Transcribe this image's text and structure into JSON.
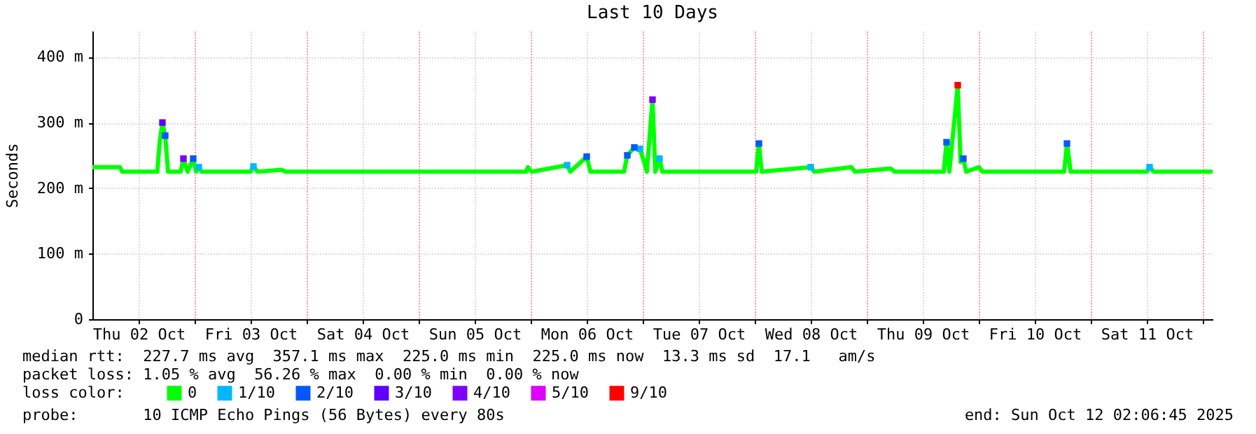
{
  "chart_data": {
    "type": "line",
    "title": "Last 10 Days",
    "ylabel": "Seconds",
    "legend_title": "loss color:",
    "legend": "bottom",
    "grid": true,
    "xlim": [
      "2025-10-02T02:06",
      "2025-10-12T02:06"
    ],
    "xticks": [
      {
        "value": "2025-10-02T12:00",
        "label": "Thu 02 Oct"
      },
      {
        "value": "2025-10-03T00:00",
        "label": null
      },
      {
        "value": "2025-10-03T12:00",
        "label": "Fri 03 Oct"
      },
      {
        "value": "2025-10-04T00:00",
        "label": null
      },
      {
        "value": "2025-10-04T12:00",
        "label": "Sat 04 Oct"
      },
      {
        "value": "2025-10-05T00:00",
        "label": null
      },
      {
        "value": "2025-10-05T12:00",
        "label": "Sun 05 Oct"
      },
      {
        "value": "2025-10-06T00:00",
        "label": null
      },
      {
        "value": "2025-10-06T12:00",
        "label": "Mon 06 Oct"
      },
      {
        "value": "2025-10-07T00:00",
        "label": null
      },
      {
        "value": "2025-10-07T12:00",
        "label": "Tue 07 Oct"
      },
      {
        "value": "2025-10-08T00:00",
        "label": null
      },
      {
        "value": "2025-10-08T12:00",
        "label": "Wed 08 Oct"
      },
      {
        "value": "2025-10-09T00:00",
        "label": null
      },
      {
        "value": "2025-10-09T12:00",
        "label": "Thu 09 Oct"
      },
      {
        "value": "2025-10-10T00:00",
        "label": null
      },
      {
        "value": "2025-10-10T12:00",
        "label": "Fri 10 Oct"
      },
      {
        "value": "2025-10-11T00:00",
        "label": null
      },
      {
        "value": "2025-10-11T12:00",
        "label": "Sat 11 Oct"
      },
      {
        "value": "2025-10-12T00:00",
        "label": null
      }
    ],
    "ylim": [
      0,
      440
    ],
    "yticks": [
      0,
      {
        "value": 100,
        "label": "100 m"
      },
      {
        "value": 200,
        "label": "200 m"
      },
      {
        "value": 300,
        "label": "300 m"
      },
      {
        "value": 400,
        "label": "400 m"
      }
    ],
    "series": [
      {
        "name": "0",
        "color": "#00ff00",
        "x": [
          "2025-10-02T02:06",
          "2025-10-02T08:00",
          "2025-10-02T08:30",
          "2025-10-02T16:00",
          "2025-10-02T16:30",
          "2025-10-02T17:06",
          "2025-10-02T17:42",
          "2025-10-02T18:18",
          "2025-10-02T21:00",
          "2025-10-02T21:36",
          "2025-10-02T22:30",
          "2025-10-02T23:42",
          "2025-10-03T00:18",
          "2025-10-03T00:54",
          "2025-10-03T01:30",
          "2025-10-03T12:00",
          "2025-10-03T12:36",
          "2025-10-03T13:30",
          "2025-10-03T18:36",
          "2025-10-03T19:30",
          "2025-10-05T23:00",
          "2025-10-05T23:24",
          "2025-10-06T00:12",
          "2025-10-06T07:48",
          "2025-10-06T08:30",
          "2025-10-06T12:00",
          "2025-10-06T12:48",
          "2025-10-06T20:00",
          "2025-10-06T20:42",
          "2025-10-06T22:12",
          "2025-10-06T23:24",
          "2025-10-07T00:18",
          "2025-10-07T00:54",
          "2025-10-07T02:06",
          "2025-10-07T02:42",
          "2025-10-07T03:36",
          "2025-10-07T04:12",
          "2025-10-08T00:18",
          "2025-10-08T00:54",
          "2025-10-08T01:30",
          "2025-10-08T12:00",
          "2025-10-08T12:48",
          "2025-10-08T20:42",
          "2025-10-08T21:30",
          "2025-10-09T05:06",
          "2025-10-09T06:00",
          "2025-10-09T16:30",
          "2025-10-09T17:06",
          "2025-10-09T17:42",
          "2025-10-09T19:30",
          "2025-10-09T20:06",
          "2025-10-09T20:42",
          "2025-10-09T21:18",
          "2025-10-10T00:00",
          "2025-10-10T00:48",
          "2025-10-10T18:18",
          "2025-10-10T18:54",
          "2025-10-10T19:42",
          "2025-10-11T12:00",
          "2025-10-11T12:36",
          "2025-10-11T13:30",
          "2025-10-12T02:06"
        ],
        "values": [
          232,
          232,
          225,
          225,
          270,
          300,
          280,
          225,
          225,
          245,
          225,
          245,
          225,
          232,
          225,
          225,
          233,
          225,
          228,
          225,
          225,
          232,
          225,
          235,
          225,
          248,
          225,
          225,
          250,
          262,
          260,
          240,
          225,
          335,
          225,
          245,
          225,
          225,
          268,
          225,
          232,
          225,
          232,
          225,
          230,
          225,
          225,
          270,
          225,
          357,
          240,
          245,
          225,
          232,
          225,
          225,
          268,
          225,
          225,
          232,
          225,
          225
        ]
      },
      {
        "name": "1/10",
        "type": "scatter",
        "marker": "square",
        "color": "#00b8ff",
        "x": [
          "2025-10-03T00:54",
          "2025-10-03T12:36",
          "2025-10-06T07:48",
          "2025-10-06T23:24",
          "2025-10-07T03:36",
          "2025-10-08T12:00",
          "2025-10-11T12:36"
        ],
        "values": [
          232,
          233,
          235,
          260,
          245,
          232,
          232
        ]
      },
      {
        "name": "2/10",
        "type": "scatter",
        "marker": "square",
        "color": "#0059ff",
        "x": [
          "2025-10-02T17:42",
          "2025-10-02T23:42",
          "2025-10-06T12:00",
          "2025-10-06T20:42",
          "2025-10-06T22:12",
          "2025-10-08T00:54",
          "2025-10-09T17:06",
          "2025-10-09T20:42",
          "2025-10-10T18:54"
        ],
        "values": [
          280,
          245,
          248,
          250,
          262,
          268,
          270,
          245,
          268
        ]
      },
      {
        "name": "3/10",
        "type": "scatter",
        "marker": "square",
        "color": "#5e00ff",
        "x": [
          "2025-10-02T17:06"
        ],
        "values": [
          300
        ]
      },
      {
        "name": "4/10",
        "type": "scatter",
        "marker": "square",
        "color": "#7e00ff",
        "x": [
          "2025-10-02T21:36",
          "2025-10-07T02:06"
        ],
        "values": [
          245,
          335
        ]
      },
      {
        "name": "5/10",
        "type": "scatter",
        "color": "#dd00ff"
      },
      {
        "name": "9/10",
        "type": "scatter",
        "marker": "square",
        "color": "#ff0000",
        "x": [
          "2025-10-09T19:30"
        ],
        "values": [
          357
        ]
      }
    ],
    "annotations": [
      "median rtt:  227.7 ms avg  357.1 ms max  225.0 ms min  225.0 ms now  13.3 ms sd  17.1   am/s",
      "packet loss: 1.05 % avg  56.26 % max  0.00 % min  0.00 % now",
      "probe:       10 ICMP Echo Pings (56 Bytes) every 80s",
      "end: Sun Oct 12 02:06:45 2025"
    ]
  }
}
